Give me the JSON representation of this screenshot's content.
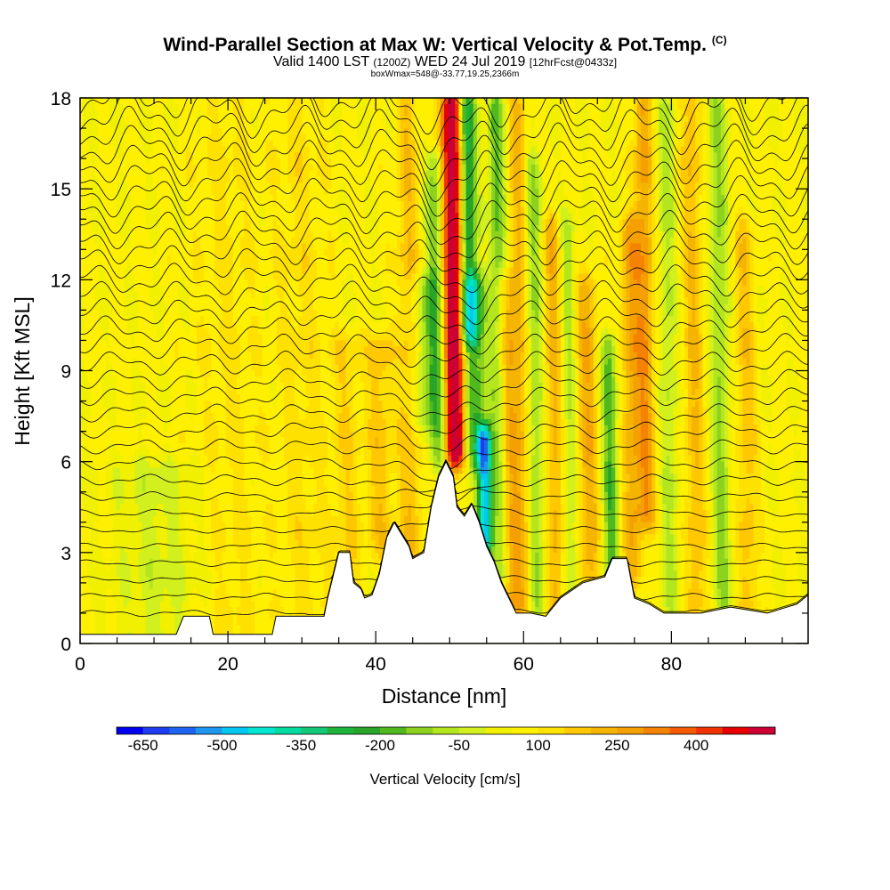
{
  "chart_data": {
    "type": "heatmap",
    "title": "Wind-Parallel Section at Max W: Vertical Velocity & Pot.Temp.",
    "title_mark": "(C)",
    "subtitle_main": "Valid 1400 LST",
    "subtitle_utc": "(1200Z)",
    "subtitle_date": "WED 24 Jul 2019",
    "subtitle_fcst": "[12hrFcst@0433z]",
    "subtitle2": "boxWmax=548@-33.77,19.25,2366m",
    "xlabel": "Distance [nm]",
    "ylabel": "Height [Kft MSL]",
    "xlim": [
      0,
      98.5
    ],
    "ylim": [
      0,
      18
    ],
    "x_ticks": [
      "0",
      "20",
      "40",
      "60",
      "80"
    ],
    "y_ticks": [
      "0",
      "3",
      "6",
      "9",
      "12",
      "15",
      "18"
    ],
    "colorbar_label": "Vertical Velocity [cm/s]",
    "colorbar_ticks": [
      "-650",
      "-500",
      "-350",
      "-200",
      "-50",
      "100",
      "250",
      "400"
    ],
    "colorbar_min": -700,
    "colorbar_max": 500,
    "colorbar_step": 50,
    "colorbar_colors": [
      "#0000f0",
      "#1e3cf0",
      "#1e64f0",
      "#1e96f0",
      "#00c8f0",
      "#00e6d2",
      "#00dca0",
      "#14c878",
      "#1eb43c",
      "#28a528",
      "#50b91e",
      "#8cd21e",
      "#b4e61e",
      "#d2f01e",
      "#f0f000",
      "#fff000",
      "#ffe100",
      "#ffc800",
      "#f5b400",
      "#f5a000",
      "#f58200",
      "#f55a00",
      "#f03200",
      "#e60000",
      "#cc0033"
    ],
    "max_w": {
      "x": 50.2,
      "value": 548
    },
    "terrain_nm_kft": [
      [
        0,
        0.3
      ],
      [
        5,
        0.3
      ],
      [
        10,
        0.3
      ],
      [
        13,
        0.3
      ],
      [
        14,
        0.9
      ],
      [
        17.5,
        0.9
      ],
      [
        18,
        0.3
      ],
      [
        21,
        0.3
      ],
      [
        26,
        0.3
      ],
      [
        26.5,
        0.9
      ],
      [
        33,
        0.9
      ],
      [
        33.5,
        1.5
      ],
      [
        34,
        2.0
      ],
      [
        35,
        3.0
      ],
      [
        36.5,
        3.0
      ],
      [
        37,
        2.0
      ],
      [
        38,
        1.8
      ],
      [
        38.5,
        1.5
      ],
      [
        39.5,
        1.6
      ],
      [
        40.5,
        2.3
      ],
      [
        41.5,
        3.5
      ],
      [
        42.5,
        4.0
      ],
      [
        43.5,
        3.6
      ],
      [
        44.5,
        3.2
      ],
      [
        45,
        2.8
      ],
      [
        46.5,
        3.0
      ],
      [
        47.5,
        4.5
      ],
      [
        48.5,
        5.5
      ],
      [
        49.5,
        6.0
      ],
      [
        50.5,
        5.5
      ],
      [
        51,
        4.5
      ],
      [
        52,
        4.2
      ],
      [
        53,
        4.6
      ],
      [
        54,
        4.0
      ],
      [
        55,
        3.2
      ],
      [
        56,
        2.7
      ],
      [
        57,
        2.0
      ],
      [
        58,
        1.5
      ],
      [
        59,
        1.0
      ],
      [
        61,
        1.0
      ],
      [
        63,
        0.9
      ],
      [
        65,
        1.5
      ],
      [
        68,
        2.0
      ],
      [
        71,
        2.2
      ],
      [
        72,
        2.8
      ],
      [
        74,
        2.8
      ],
      [
        75,
        1.5
      ],
      [
        77,
        1.3
      ],
      [
        79,
        1.0
      ],
      [
        84,
        1.0
      ],
      [
        88,
        1.2
      ],
      [
        93,
        1.0
      ],
      [
        97,
        1.3
      ],
      [
        98.5,
        1.6
      ]
    ],
    "w_columns": [
      {
        "x": 50.3,
        "w": 480,
        "sigma": 0.9,
        "zmin": 6,
        "zmax": 18
      },
      {
        "x": 51.3,
        "w": 230,
        "sigma": 0.7,
        "zmin": 6,
        "zmax": 18
      },
      {
        "x": 52.6,
        "w": -360,
        "sigma": 0.9,
        "zmin": 10,
        "zmax": 18
      },
      {
        "x": 54.5,
        "w": -560,
        "sigma": 0.7,
        "zmin": 3,
        "zmax": 7
      },
      {
        "x": 53.3,
        "w": -260,
        "sigma": 1.2,
        "zmin": 6,
        "zmax": 12
      },
      {
        "x": 48.3,
        "w": -230,
        "sigma": 0.9,
        "zmin": 6,
        "zmax": 16
      },
      {
        "x": 46.5,
        "w": -150,
        "sigma": 1.2,
        "zmin": 7,
        "zmax": 12
      },
      {
        "x": 57.5,
        "w": 200,
        "sigma": 1.0,
        "zmin": 1,
        "zmax": 12
      },
      {
        "x": 59.5,
        "w": 160,
        "sigma": 0.9,
        "zmin": 1,
        "zmax": 18
      },
      {
        "x": 56.6,
        "w": -230,
        "sigma": 0.8,
        "zmin": 2,
        "zmax": 18
      },
      {
        "x": 61.5,
        "w": -180,
        "sigma": 0.9,
        "zmin": 1,
        "zmax": 16
      },
      {
        "x": 64,
        "w": 170,
        "sigma": 1.0,
        "zmin": 1,
        "zmax": 14
      },
      {
        "x": 66,
        "w": -150,
        "sigma": 0.8,
        "zmin": 1,
        "zmax": 14
      },
      {
        "x": 68.5,
        "w": 180,
        "sigma": 1.1,
        "zmin": 2,
        "zmax": 12
      },
      {
        "x": 71.5,
        "w": -250,
        "sigma": 0.8,
        "zmin": 1,
        "zmax": 10
      },
      {
        "x": 74.5,
        "w": 180,
        "sigma": 1.0,
        "zmin": 2,
        "zmax": 14
      },
      {
        "x": 76.5,
        "w": 210,
        "sigma": 0.9,
        "zmin": 4,
        "zmax": 18
      },
      {
        "x": 79.5,
        "w": -120,
        "sigma": 0.9,
        "zmin": 1,
        "zmax": 18
      },
      {
        "x": 83,
        "w": 140,
        "sigma": 1.0,
        "zmin": 1,
        "zmax": 18
      },
      {
        "x": 86.5,
        "w": -170,
        "sigma": 0.9,
        "zmin": 1,
        "zmax": 18
      },
      {
        "x": 90,
        "w": 120,
        "sigma": 1.0,
        "zmin": 1,
        "zmax": 14
      },
      {
        "x": 44.5,
        "w": 130,
        "sigma": 1.1,
        "zmin": 2,
        "zmax": 18
      },
      {
        "x": 40.5,
        "w": 120,
        "sigma": 1.2,
        "zmin": 3,
        "zmax": 10
      },
      {
        "x": 36,
        "w": 80,
        "sigma": 1.5,
        "zmin": 1,
        "zmax": 10
      },
      {
        "x": 30,
        "w": 60,
        "sigma": 2.5,
        "zmin": 1,
        "zmax": 18
      },
      {
        "x": 20,
        "w": 50,
        "sigma": 3.0,
        "zmin": 0,
        "zmax": 18
      },
      {
        "x": 10,
        "w": -80,
        "sigma": 4.0,
        "zmin": 0,
        "zmax": 6
      }
    ],
    "theta_contours": {
      "count": 32,
      "base_kft": 1.0,
      "spacing_kft": 0.55
    }
  }
}
